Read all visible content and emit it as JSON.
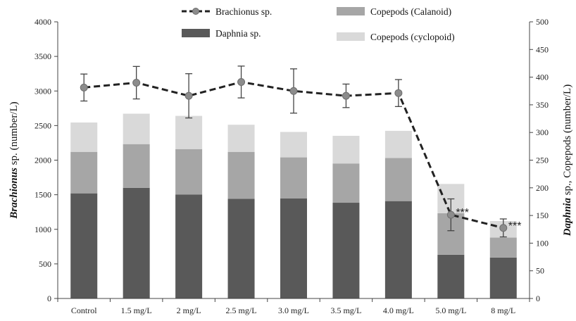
{
  "chart_data": {
    "type": "bar",
    "categories": [
      "Control",
      "1.5 mg/L",
      "2 mg/L",
      "2.5 mg/L",
      "3.0 mg/L",
      "3.5 mg/L",
      "4.0 mg/L",
      "5.0 mg/L",
      "8 mg/L"
    ],
    "left_axis": {
      "title_parts": [
        {
          "text": "Brachionus",
          "italic": true
        },
        {
          "text": " sp. (number/L)",
          "italic": false
        }
      ],
      "ylim": [
        0,
        4000
      ],
      "ticks": [
        "0",
        "500",
        "1000",
        "1500",
        "2000",
        "2500",
        "3000",
        "3500",
        "4000"
      ]
    },
    "right_axis": {
      "title_parts": [
        {
          "text": "Daphnia",
          "italic": true
        },
        {
          "text": " sp., Copepods (number/L)",
          "italic": false
        }
      ],
      "ylim": [
        0,
        500
      ],
      "ticks": [
        "0",
        "50",
        "100",
        "150",
        "200",
        "250",
        "300",
        "350",
        "400",
        "450",
        "500"
      ]
    },
    "bar_series": [
      {
        "name": "Daphnia sp.",
        "color": "#595959",
        "values": [
          190,
          200,
          188,
          180,
          181,
          173,
          176,
          79,
          74
        ]
      },
      {
        "name": "Copepods (Calanoid)",
        "color": "#a6a6a6",
        "values": [
          75,
          79,
          82,
          85,
          74,
          71,
          78,
          75,
          36
        ]
      },
      {
        "name": "Copepods (cyclopoid)",
        "color": "#d9d9d9",
        "values": [
          53,
          55,
          60,
          49,
          46,
          50,
          49,
          53,
          30
        ]
      }
    ],
    "line_series": {
      "name": "Brachionus sp.",
      "color": "#222222",
      "values": [
        3050,
        3120,
        2930,
        3130,
        3000,
        2930,
        2970,
        1210,
        1020
      ],
      "errors": [
        195,
        235,
        320,
        230,
        320,
        170,
        195,
        230,
        130
      ]
    },
    "annotations": [
      {
        "category": "5.0 mg/L",
        "text": "***"
      },
      {
        "category": "8 mg/L",
        "text": "***"
      }
    ],
    "legend": {
      "placement": "top",
      "items": [
        {
          "label": "Brachionus sp.",
          "kind": "line"
        },
        {
          "label": "Copepods (Calanoid)",
          "kind": "bar",
          "color": "#a6a6a6"
        },
        {
          "label": "Daphnia sp.",
          "kind": "bar",
          "color": "#595959"
        },
        {
          "label": "Copepods (cyclopoid)",
          "kind": "bar",
          "color": "#d9d9d9"
        }
      ]
    },
    "grid": false
  }
}
